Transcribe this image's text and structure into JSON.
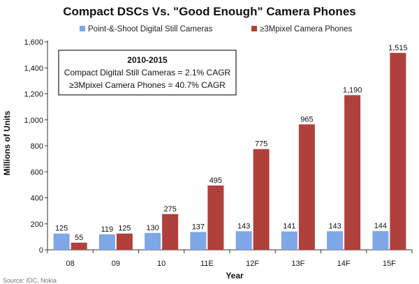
{
  "chart_data": {
    "type": "bar",
    "title": "Compact DSCs Vs. \"Good Enough\" Camera Phones",
    "xlabel": "Year",
    "ylabel": "Millions of Units",
    "ylim": [
      0,
      1600
    ],
    "yticks": [
      "0",
      "200",
      "400",
      "600",
      "800",
      "1,000",
      "1,200",
      "1,400",
      "1,600"
    ],
    "ytick_values": [
      0,
      200,
      400,
      600,
      800,
      1000,
      1200,
      1400,
      1600
    ],
    "categories": [
      "08",
      "09",
      "10",
      "11E",
      "12F",
      "13F",
      "14F",
      "15F"
    ],
    "series": [
      {
        "name": "Point-&-Shoot Digital Still Cameras",
        "color": "#7fa6e6",
        "values": [
          125,
          119,
          130,
          137,
          143,
          141,
          143,
          144
        ],
        "labels": [
          "125",
          "119",
          "130",
          "137",
          "143",
          "141",
          "143",
          "144"
        ]
      },
      {
        "name": "≥3Mpixel Camera Phones",
        "color": "#b0403c",
        "values": [
          55,
          125,
          275,
          495,
          775,
          965,
          1190,
          1515
        ],
        "labels": [
          "55",
          "125",
          "275",
          "495",
          "775",
          "965",
          "1,190",
          "1,515"
        ]
      }
    ],
    "grid": false,
    "legend_position": "top",
    "annotation": {
      "title": "2010-2015",
      "lines": [
        "Compact Digital Still Cameras = 2.1% CAGR",
        "≥3Mpixel Camera Phones = 40.7% CAGR"
      ]
    }
  },
  "source_text": "Source: IDC, Nokia"
}
